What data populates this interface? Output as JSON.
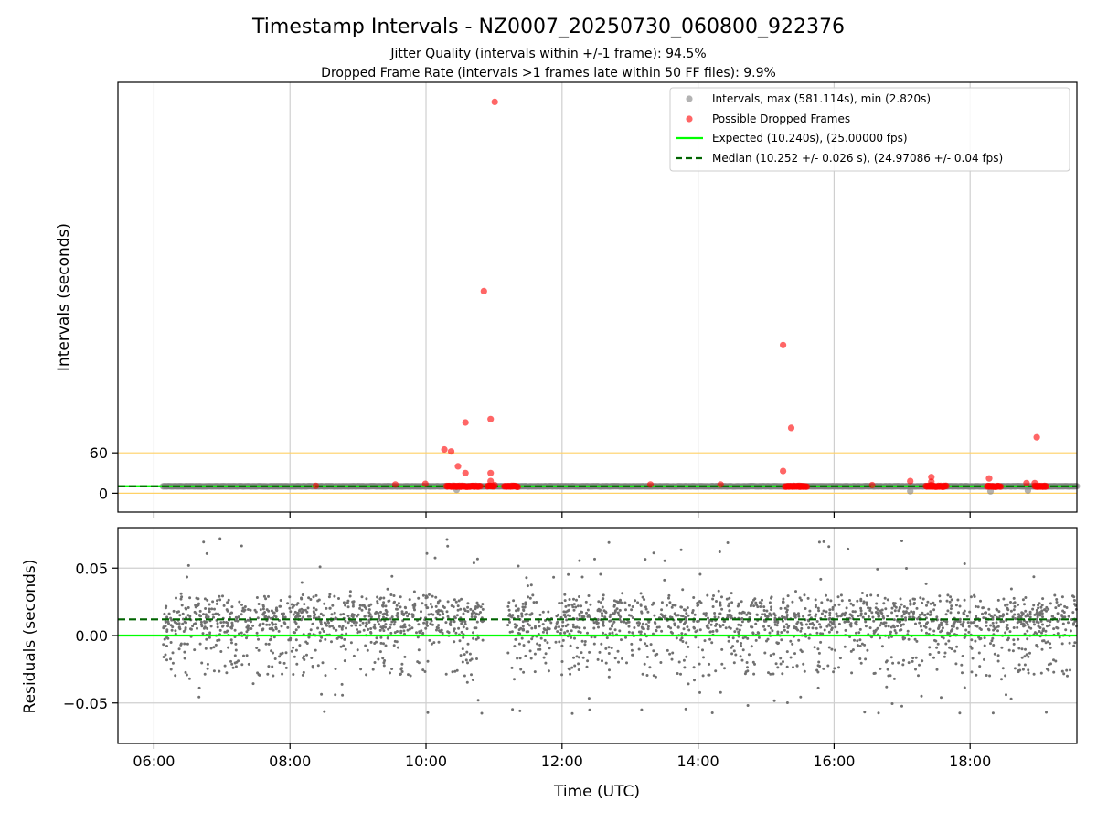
{
  "figure": {
    "title": "Timestamp Intervals - NZ0007_20250730_060800_922376",
    "subtitle_1": "Jitter Quality (intervals within +/-1 frame): 94.5%",
    "subtitle_2": "Dropped Frame Rate (intervals >1 frames late within 50 FF files): 9.9%"
  },
  "chart_data": [
    {
      "type": "scatter",
      "panel": "intervals",
      "ylabel": "Intervals (seconds)",
      "xlabel": "",
      "x_unit": "hours (UTC)",
      "xlim": [
        5.47,
        19.57
      ],
      "ylim": [
        -28,
        610
      ],
      "yticks": [
        0,
        60
      ],
      "ytick_labels": [
        "0",
        "60"
      ],
      "xticks": [
        6,
        8,
        10,
        12,
        14,
        16,
        18
      ],
      "xtick_labels": [
        "06:00",
        "08:00",
        "10:00",
        "12:00",
        "14:00",
        "16:00",
        "18:00"
      ],
      "grid": "x-only",
      "legend": "top-right",
      "legend_entries": [
        {
          "label": "Intervals, max (581.114s), min (2.820s)",
          "marker": "dot",
          "color": "#808080"
        },
        {
          "label": "Possible Dropped Frames",
          "marker": "dot",
          "color": "#ff0000"
        },
        {
          "label": "Expected (10.240s), (25.00000 fps)",
          "marker": "solid-line",
          "color": "#00ff00"
        },
        {
          "label": "Median (10.252 +/- 0.026 s), (24.97086 +/- 0.04 fps)",
          "marker": "dashed-line",
          "color": "#006400"
        }
      ],
      "reference_lines": [
        {
          "name": "upper-threshold",
          "y": 60,
          "color": "#ffd166"
        },
        {
          "name": "lower-threshold",
          "y": 0,
          "color": "#ffd166"
        },
        {
          "name": "expected",
          "y": 10.24,
          "color": "#00ff00",
          "style": "solid"
        },
        {
          "name": "median",
          "y": 10.252,
          "color": "#006400",
          "style": "dashed"
        }
      ],
      "intervals_series": {
        "name": "Intervals",
        "x_range": [
          6.13,
          19.57
        ],
        "y": 10.24,
        "count": 4900,
        "color": "#808080",
        "outliers": [
          [
            17.12,
            3
          ],
          [
            18.3,
            2.8
          ],
          [
            18.85,
            4
          ],
          [
            10.45,
            5
          ]
        ]
      },
      "dropped_frames": {
        "name": "Possible Dropped Frames",
        "color": "#ff0000",
        "points": [
          [
            8.38,
            11
          ],
          [
            9.55,
            13
          ],
          [
            9.99,
            14
          ],
          [
            10.27,
            65
          ],
          [
            10.37,
            62
          ],
          [
            10.47,
            40
          ],
          [
            10.58,
            105
          ],
          [
            10.58,
            30
          ],
          [
            10.85,
            300
          ],
          [
            10.95,
            110
          ],
          [
            10.95,
            30
          ],
          [
            10.95,
            18
          ],
          [
            11.01,
            581
          ],
          [
            11.01,
            12
          ],
          [
            13.3,
            13
          ],
          [
            14.33,
            13
          ],
          [
            15.25,
            220
          ],
          [
            15.25,
            33
          ],
          [
            15.37,
            97
          ],
          [
            16.56,
            12
          ],
          [
            17.12,
            18
          ],
          [
            17.43,
            24
          ],
          [
            17.43,
            17
          ],
          [
            17.43,
            12
          ],
          [
            18.28,
            22
          ],
          [
            18.83,
            15
          ],
          [
            18.95,
            15
          ],
          [
            18.98,
            83
          ]
        ],
        "dense_bands": [
          [
            10.3,
            10.8
          ],
          [
            10.9,
            11.0
          ],
          [
            11.15,
            11.35
          ],
          [
            15.28,
            15.6
          ],
          [
            17.35,
            17.65
          ],
          [
            18.25,
            18.45
          ],
          [
            18.95,
            19.12
          ]
        ],
        "dense_y": 10.24
      }
    },
    {
      "type": "scatter",
      "panel": "residuals",
      "ylabel": "Residuals (seconds)",
      "xlabel": "Time (UTC)",
      "x_unit": "hours (UTC)",
      "xlim": [
        5.47,
        19.57
      ],
      "ylim": [
        -0.08,
        0.08
      ],
      "yticks": [
        -0.05,
        0.0,
        0.05
      ],
      "ytick_labels": [
        "−0.05",
        "0.00",
        "0.05"
      ],
      "xticks": [
        6,
        8,
        10,
        12,
        14,
        16,
        18
      ],
      "xtick_labels": [
        "06:00",
        "08:00",
        "10:00",
        "12:00",
        "14:00",
        "16:00",
        "18:00"
      ],
      "grid": "both",
      "reference_lines": [
        {
          "name": "expected",
          "y": 0.0,
          "color": "#00ff00",
          "style": "solid"
        },
        {
          "name": "median",
          "y": 0.012,
          "color": "#006400",
          "style": "dashed"
        }
      ],
      "residuals_series": {
        "name": "Residuals",
        "x_range": [
          6.13,
          19.57
        ],
        "gap": [
          10.85,
          11.2
        ],
        "y_range": [
          -0.058,
          0.072
        ],
        "center": 0.012,
        "count": 4200,
        "color": "#707070"
      }
    }
  ]
}
